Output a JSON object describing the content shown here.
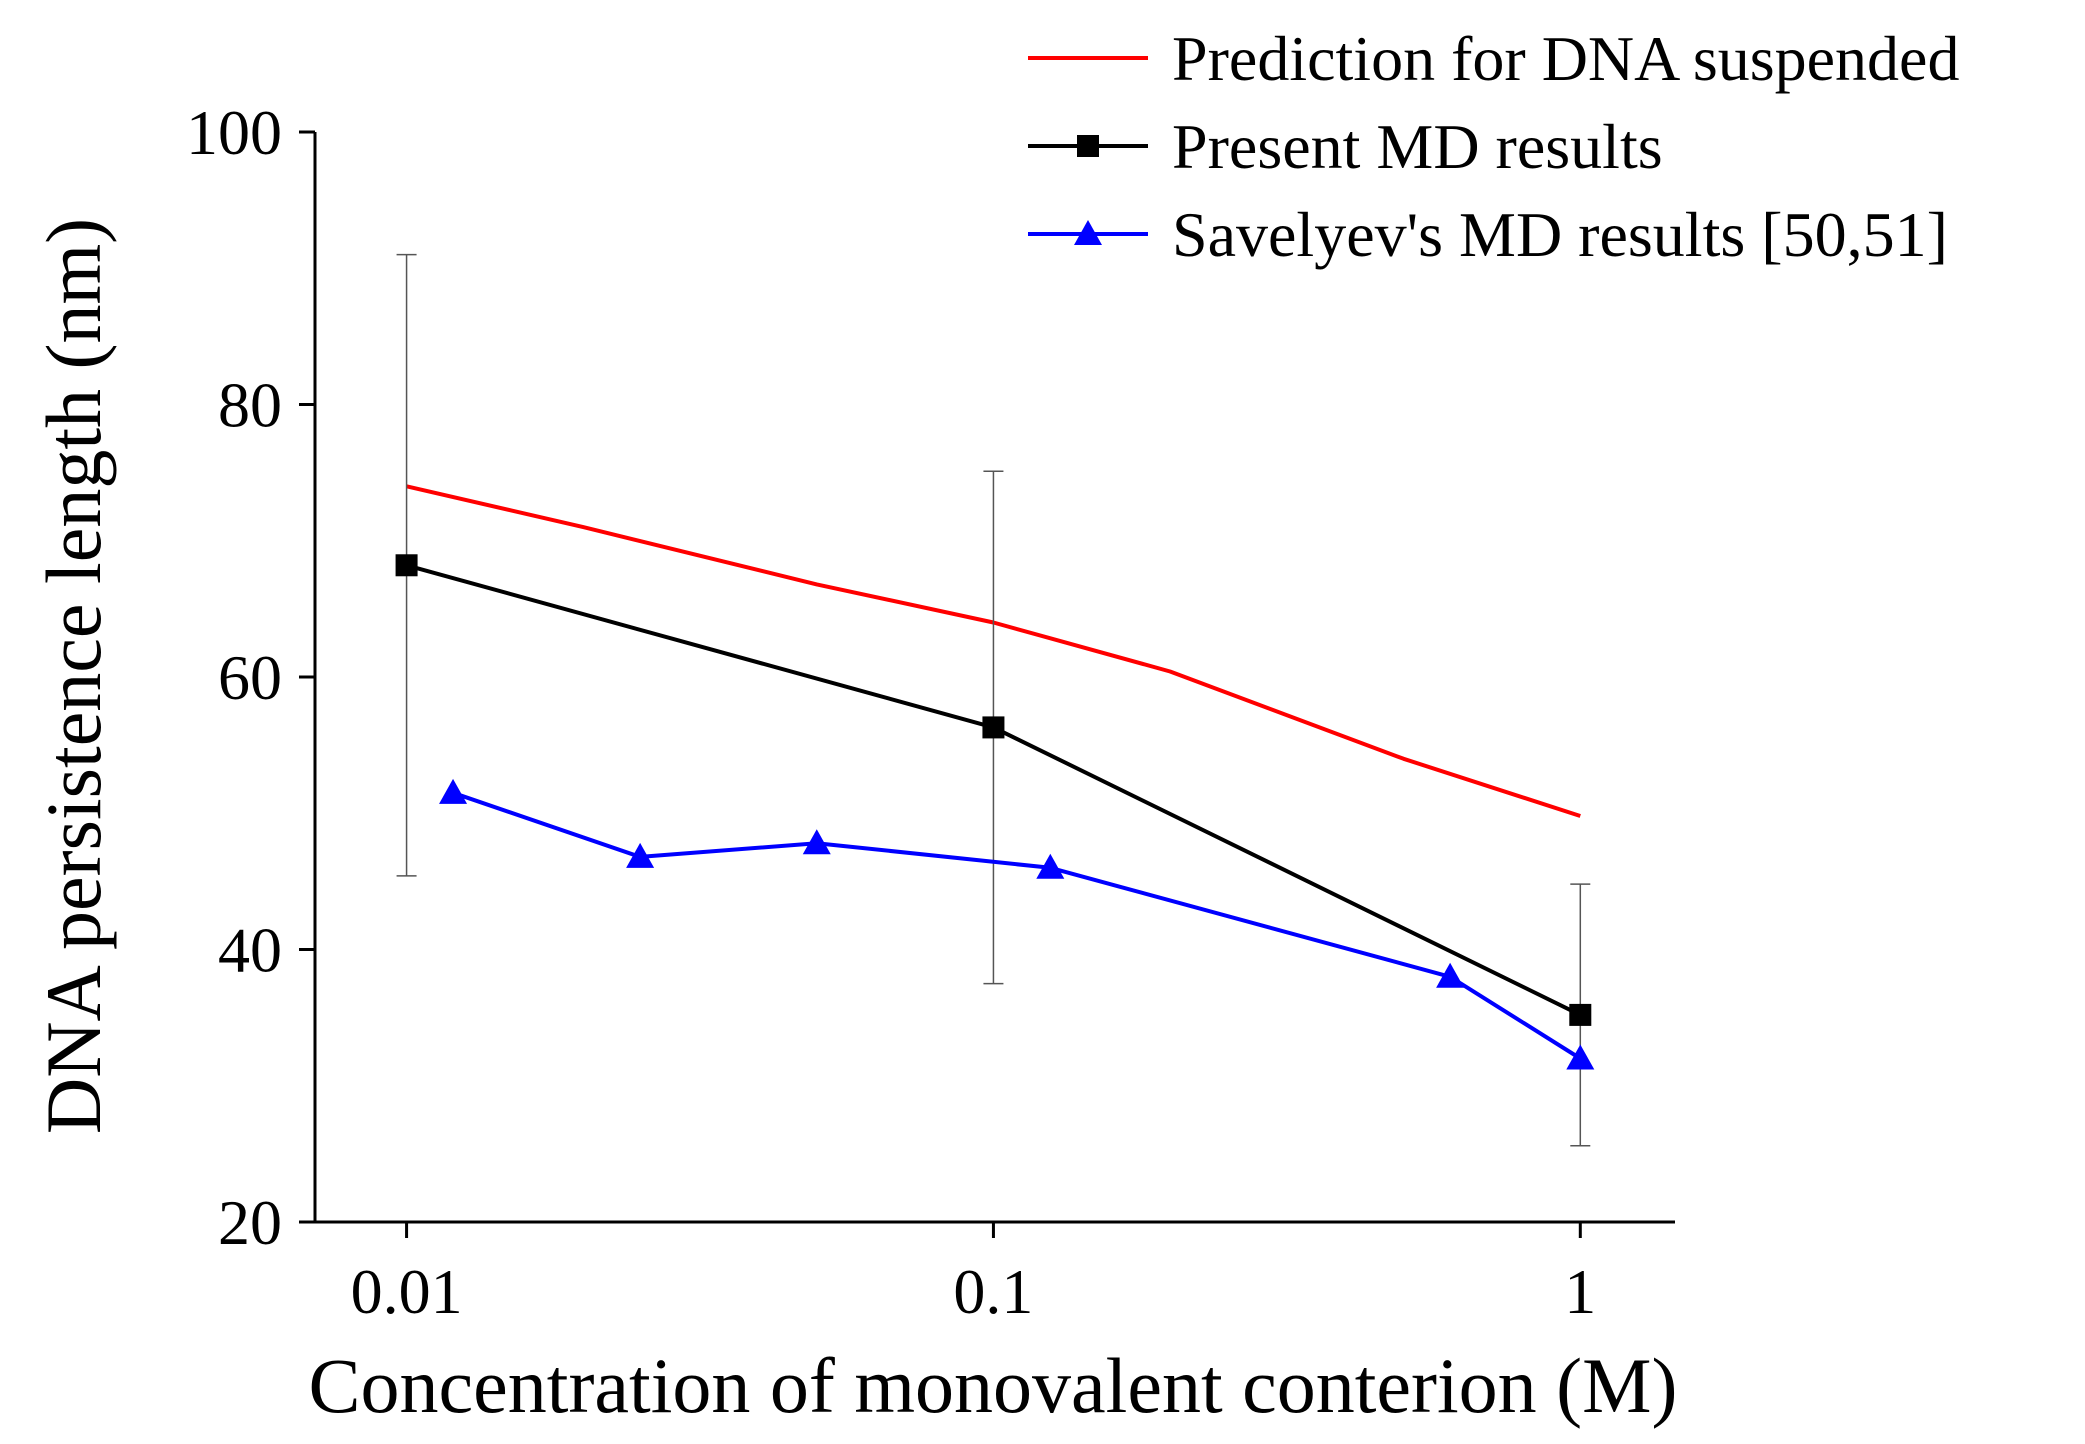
{
  "chart_data": {
    "type": "line",
    "title": "",
    "xlabel": "Concentration of monovalent conterion (M)",
    "ylabel": "DNA persistence length (nm)",
    "xscale": "log",
    "xlim": [
      0.0069,
      1.45
    ],
    "ylim": [
      20,
      100
    ],
    "x_ticks": [
      0.01,
      0.1,
      1
    ],
    "x_tick_labels": [
      "0.01",
      "0.1",
      "1"
    ],
    "y_ticks": [
      20,
      40,
      60,
      80,
      100
    ],
    "y_tick_labels": [
      "20",
      "40",
      "60",
      "80",
      "100"
    ],
    "legend_position": "top-right",
    "series": [
      {
        "name": "Prediction for DNA suspended",
        "color": "#ff0000",
        "marker": "none",
        "x": [
          0.01,
          0.02,
          0.05,
          0.1,
          0.2,
          0.5,
          1.0
        ],
        "y": [
          74.0,
          71.0,
          66.8,
          64.0,
          60.4,
          54.0,
          49.8
        ]
      },
      {
        "name": "Present MD results",
        "color": "#000000",
        "marker": "square",
        "x": [
          0.01,
          0.1,
          1.0
        ],
        "y": [
          68.2,
          56.3,
          35.2
        ],
        "error": [
          22.8,
          18.8,
          9.6
        ]
      },
      {
        "name": "Savelyev's MD results [50,51]",
        "color": "#0000ff",
        "marker": "triangle",
        "x": [
          0.012,
          0.025,
          0.05,
          0.125,
          0.6,
          1.0
        ],
        "y": [
          51.5,
          46.8,
          47.8,
          46.0,
          38.0,
          32.0
        ]
      }
    ]
  }
}
